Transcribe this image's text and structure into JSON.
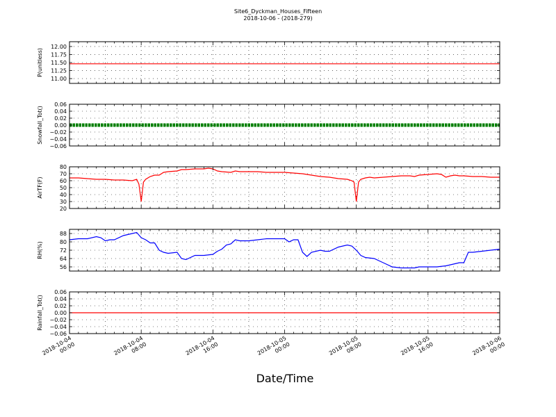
{
  "title": "Site6_Dyckman_Houses_Fifteen",
  "subtitle": "2018-10-06 - (2018-279)",
  "xlabel": "Date/Time",
  "x_ticks": [
    {
      "l1": "2018-10-04",
      "l2": "00:00",
      "h": 0
    },
    {
      "l1": "2018-10-04",
      "l2": "08:00",
      "h": 8
    },
    {
      "l1": "2018-10-04",
      "l2": "16:00",
      "h": 16
    },
    {
      "l1": "2018-10-05",
      "l2": "00:00",
      "h": 24
    },
    {
      "l1": "2018-10-05",
      "l2": "08:00",
      "h": 32
    },
    {
      "l1": "2018-10-05",
      "l2": "16:00",
      "h": 40
    },
    {
      "l1": "2018-10-06",
      "l2": "00:00",
      "h": 48
    }
  ],
  "colors": {
    "red": "#ff0000",
    "green": "#007f00",
    "blue": "#0000ff"
  },
  "chart_data": [
    {
      "type": "line",
      "ylabel": "P(unitless)",
      "ylim": [
        10.85,
        12.15
      ],
      "yticks": [
        11.0,
        11.25,
        11.5,
        11.75,
        12.0
      ],
      "ytick_labels": [
        "11.00",
        "11.25",
        "11.50",
        "11.75",
        "12.00"
      ],
      "color": "#ff0000",
      "style": "line",
      "x_hours": [
        0,
        48
      ],
      "values": [
        11.46,
        11.46
      ],
      "grid": true
    },
    {
      "type": "line",
      "ylabel": "Snowfall_Tot()",
      "ylim": [
        -0.06,
        0.06
      ],
      "yticks": [
        -0.06,
        -0.04,
        -0.02,
        0.0,
        0.02,
        0.04,
        0.06
      ],
      "ytick_labels": [
        "−0.06",
        "−0.04",
        "−0.02",
        "0.00",
        "0.02",
        "0.04",
        "0.06"
      ],
      "color": "#007f00",
      "style": "markers",
      "x_hours": [
        0,
        48
      ],
      "values": [
        0,
        0
      ],
      "grid": true
    },
    {
      "type": "line",
      "ylabel": "AirTF(F)",
      "ylim": [
        20,
        80
      ],
      "yticks": [
        20,
        30,
        40,
        50,
        60,
        70,
        80
      ],
      "ytick_labels": [
        "20",
        "30",
        "40",
        "50",
        "60",
        "70",
        "80"
      ],
      "color": "#ff0000",
      "style": "line",
      "x_hours": [
        0,
        1,
        2,
        3,
        4,
        5,
        6,
        7,
        7.5,
        7.75,
        8.0,
        8.25,
        8.5,
        9,
        9.5,
        10,
        10.5,
        11,
        12,
        12.5,
        13,
        14,
        15,
        15.5,
        16,
        16.5,
        17,
        18,
        18.5,
        19,
        20,
        21,
        22,
        23,
        24,
        25,
        26,
        27,
        28,
        29,
        30,
        31,
        31.5,
        31.75,
        32.0,
        32.25,
        32.5,
        33,
        33.5,
        34,
        35,
        36,
        37,
        38,
        38.5,
        39,
        40,
        41,
        41.5,
        42,
        42.5,
        43,
        43.5,
        44,
        45,
        46,
        47,
        48
      ],
      "values": [
        64,
        64,
        63,
        62,
        62,
        61,
        61,
        60,
        62,
        55,
        30,
        58,
        62,
        66,
        68,
        68,
        72,
        73,
        74,
        76,
        76,
        77,
        77,
        78,
        77,
        74,
        73,
        72,
        74,
        73,
        73,
        73,
        72,
        72,
        72,
        71,
        70,
        68,
        66,
        65,
        63,
        62,
        60,
        58,
        30,
        58,
        62,
        64,
        65,
        64,
        65,
        66,
        67,
        67,
        66,
        68,
        69,
        70,
        69,
        65,
        67,
        68,
        67,
        67,
        66,
        66,
        65,
        65
      ],
      "grid": true
    },
    {
      "type": "line",
      "ylabel": "RH(%)",
      "ylim": [
        52,
        92
      ],
      "yticks": [
        56,
        64,
        72,
        80,
        88
      ],
      "ytick_labels": [
        "56",
        "64",
        "72",
        "80",
        "88"
      ],
      "color": "#0000ff",
      "style": "line",
      "x_hours": [
        0,
        1,
        2,
        3,
        3.5,
        4,
        4.5,
        5,
        6,
        6.5,
        7,
        7.5,
        8,
        8.5,
        9,
        9.5,
        10,
        10.5,
        11,
        12,
        12.5,
        13,
        14,
        15,
        16,
        16.5,
        17,
        17.5,
        18,
        18.5,
        19,
        20,
        21,
        22,
        23,
        24,
        24.5,
        25,
        25.5,
        26,
        26.5,
        27,
        28,
        28.5,
        29,
        30,
        31,
        31.5,
        32,
        32.5,
        33,
        34,
        34.5,
        35,
        36,
        37,
        38,
        38.5,
        39,
        40,
        41,
        42,
        42.5,
        43,
        43.5,
        44,
        44.5,
        45,
        46,
        47,
        48
      ],
      "values": [
        82,
        83,
        83,
        85,
        84,
        81,
        82,
        82,
        86,
        87,
        88,
        89,
        84,
        82,
        79,
        79,
        72,
        70,
        69,
        70,
        64,
        63,
        67,
        67,
        68,
        71,
        73,
        77,
        78,
        82,
        81,
        81,
        82,
        83,
        83,
        83,
        80,
        82,
        82,
        70,
        66,
        70,
        72,
        71,
        71,
        75,
        77,
        76,
        72,
        67,
        65,
        64,
        62,
        60,
        56,
        55,
        55,
        55,
        56,
        56,
        56,
        57,
        58,
        59,
        60,
        60,
        70,
        70,
        71,
        72,
        73
      ],
      "grid": true
    },
    {
      "type": "line",
      "ylabel": "Rainfall_Tot()",
      "ylim": [
        -0.06,
        0.06
      ],
      "yticks": [
        -0.06,
        -0.04,
        -0.02,
        0.0,
        0.02,
        0.04,
        0.06
      ],
      "ytick_labels": [
        "−0.06",
        "−0.04",
        "−0.02",
        "0.00",
        "0.02",
        "0.04",
        "0.06"
      ],
      "color": "#ff0000",
      "style": "line",
      "x_hours": [
        0,
        48
      ],
      "values": [
        0,
        0
      ],
      "grid": true
    }
  ]
}
